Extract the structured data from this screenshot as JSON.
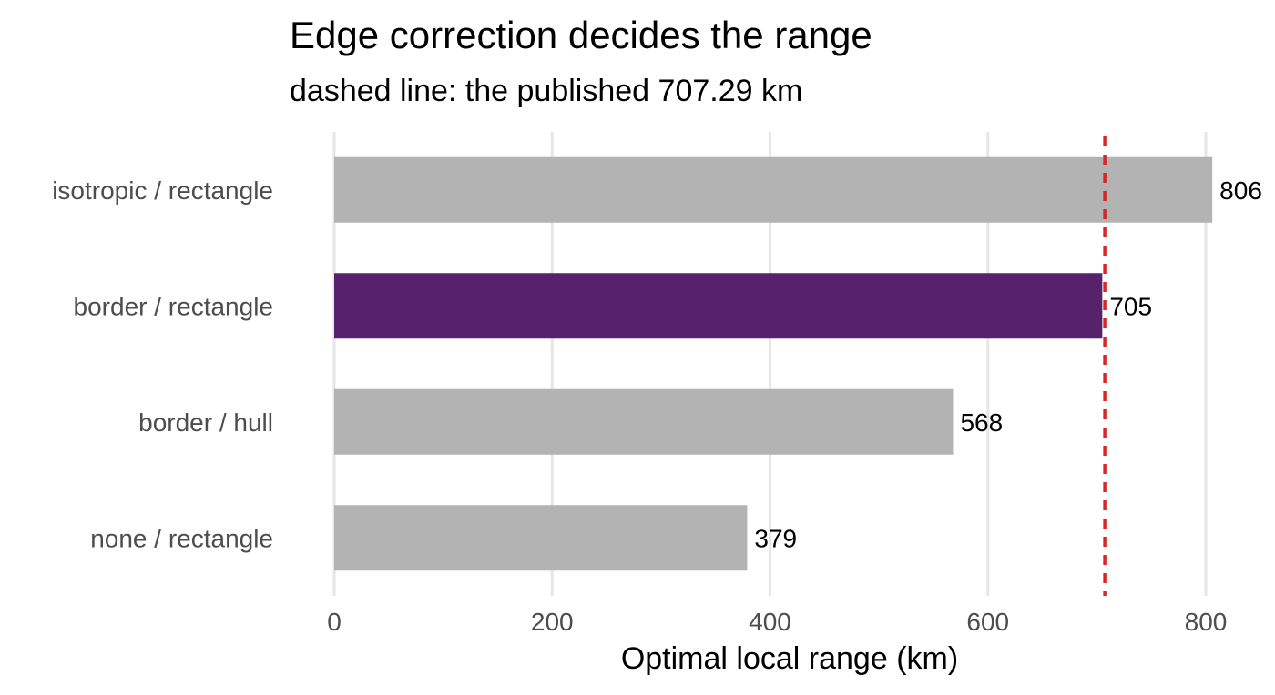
{
  "chart_data": {
    "type": "bar",
    "orientation": "horizontal",
    "title": "Edge correction decides the range",
    "subtitle": "dashed line: the published 707.29 km",
    "xlabel": "Optimal local range (km)",
    "ylabel": "",
    "categories": [
      "isotropic / rectangle",
      "border / rectangle",
      "border / hull",
      "none / rectangle"
    ],
    "values": [
      806,
      705,
      568,
      379
    ],
    "value_labels": [
      "806",
      "705",
      "568",
      "379"
    ],
    "highlight_index": 1,
    "xlim": [
      0,
      815
    ],
    "xticks": [
      0,
      200,
      400,
      600,
      800
    ],
    "xtick_labels": [
      "0",
      "200",
      "400",
      "600",
      "800"
    ],
    "reference_line": {
      "value": 707.29,
      "style": "dashed",
      "color": "#d62728"
    },
    "grid": true,
    "colors": {
      "bar": "#b3b3b3",
      "highlight": "#57216c",
      "grid": "#e6e6e6"
    }
  }
}
